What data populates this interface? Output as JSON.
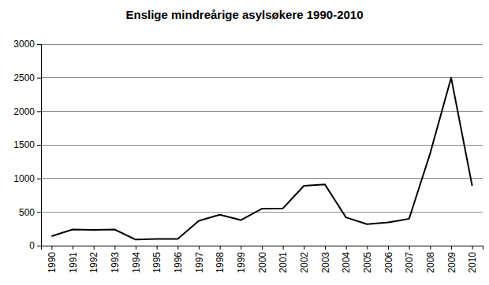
{
  "chart_data": {
    "type": "line",
    "title": "Enslige mindreårige asylsøkere 1990-2010",
    "categories": [
      "1990",
      "1991",
      "1992",
      "1993",
      "1994",
      "1995",
      "1996",
      "1997",
      "1998",
      "1999",
      "2000",
      "2001",
      "2002",
      "2003",
      "2004",
      "2005",
      "2006",
      "2007",
      "2008",
      "2009",
      "2010"
    ],
    "values": [
      140,
      240,
      235,
      240,
      90,
      100,
      100,
      370,
      460,
      380,
      550,
      555,
      890,
      910,
      420,
      320,
      345,
      400,
      1370,
      2500,
      890
    ],
    "color": "#000000",
    "ylim": [
      0,
      3000
    ],
    "yticks": [
      0,
      500,
      1000,
      1500,
      2000,
      2500,
      3000
    ],
    "grid": true
  }
}
